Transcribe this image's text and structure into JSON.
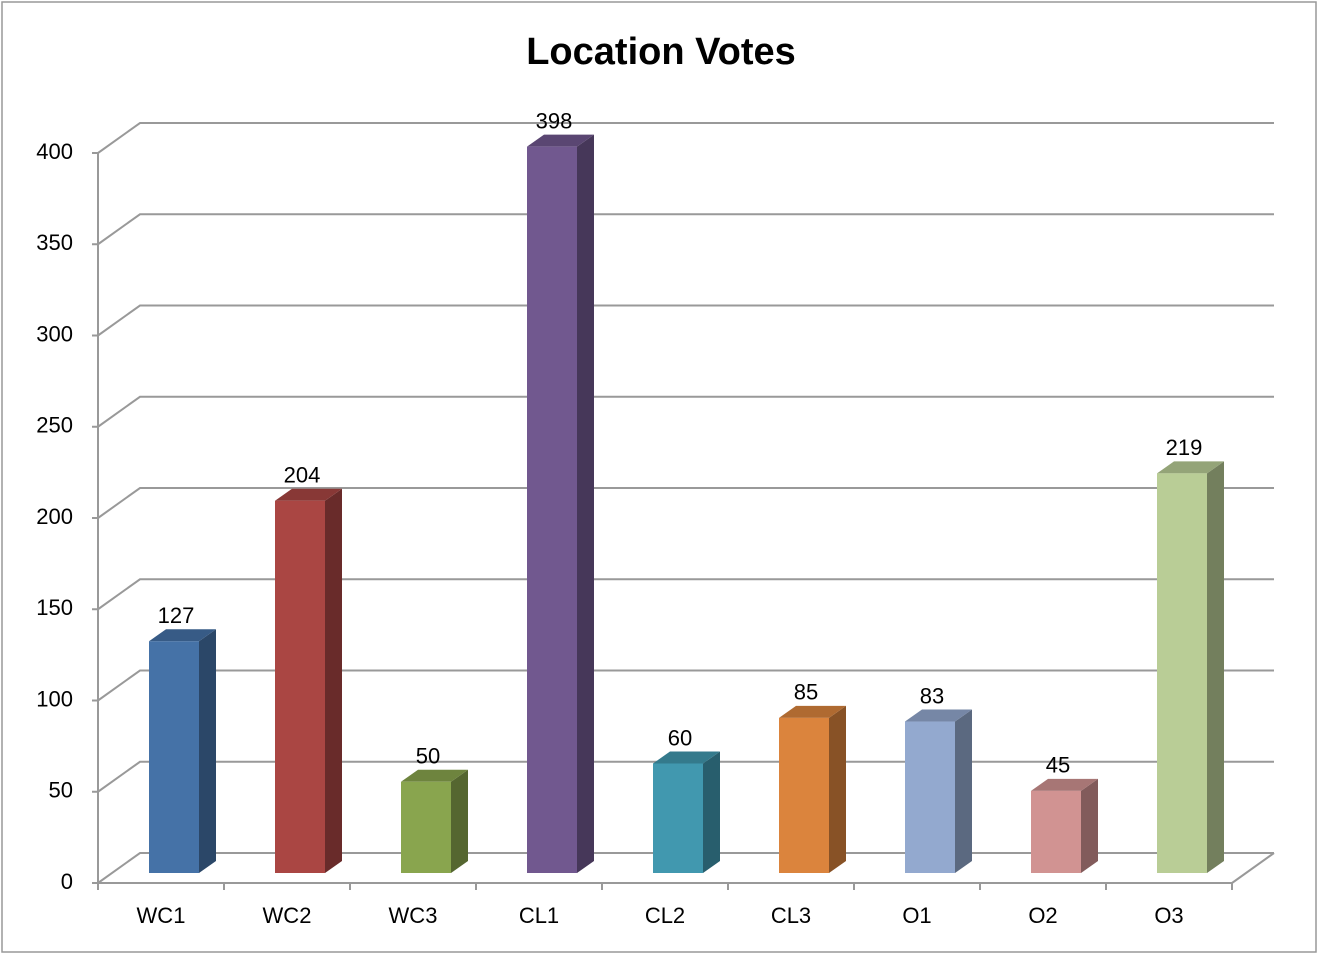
{
  "chart_data": {
    "type": "bar3d",
    "title": "Location Votes",
    "categories": [
      "WC1",
      "WC2",
      "WC3",
      "CL1",
      "CL2",
      "CL3",
      "O1",
      "O2",
      "O3"
    ],
    "values": [
      127,
      204,
      50,
      398,
      60,
      85,
      83,
      45,
      219
    ],
    "colors": [
      "#4572a7",
      "#aa4643",
      "#89a54e",
      "#71588f",
      "#4198af",
      "#db843d",
      "#93a9cf",
      "#d19392",
      "#b9cd96"
    ],
    "ylim": [
      0,
      400
    ],
    "yticks": [
      0,
      50,
      100,
      150,
      200,
      250,
      300,
      350,
      400
    ],
    "grid": true
  }
}
